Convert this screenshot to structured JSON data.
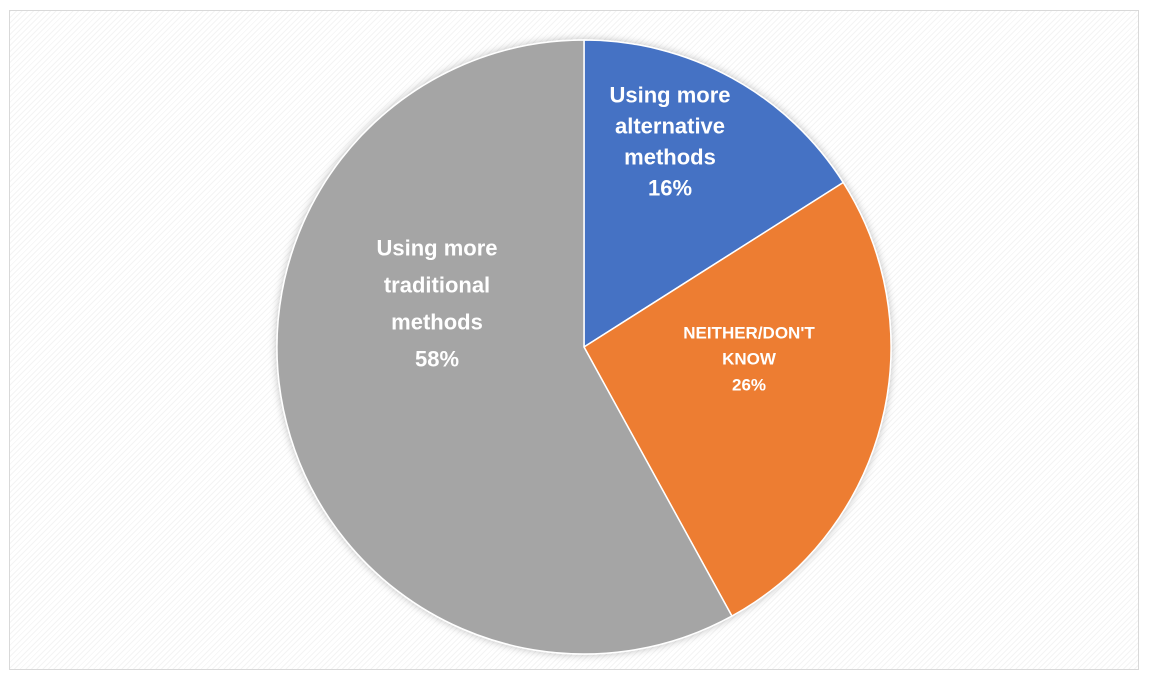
{
  "chart_data": {
    "type": "pie",
    "title": "",
    "slices": [
      {
        "label_lines": [
          "Using more",
          "alternative",
          "methods"
        ],
        "value": 16,
        "value_label": "16%",
        "color": "#4472c4"
      },
      {
        "label_lines": [
          "NEITHER/DON'T",
          "KNOW"
        ],
        "value": 26,
        "value_label": "26%",
        "color": "#ed7d31"
      },
      {
        "label_lines": [
          "Using more",
          "traditional",
          "methods"
        ],
        "value": 58,
        "value_label": "58%",
        "color": "#a5a5a5"
      }
    ],
    "start_angle_deg": 0,
    "direction": "clockwise",
    "legend": "none",
    "label_color": "#ffffff",
    "border_color": "#d9d9d9"
  }
}
